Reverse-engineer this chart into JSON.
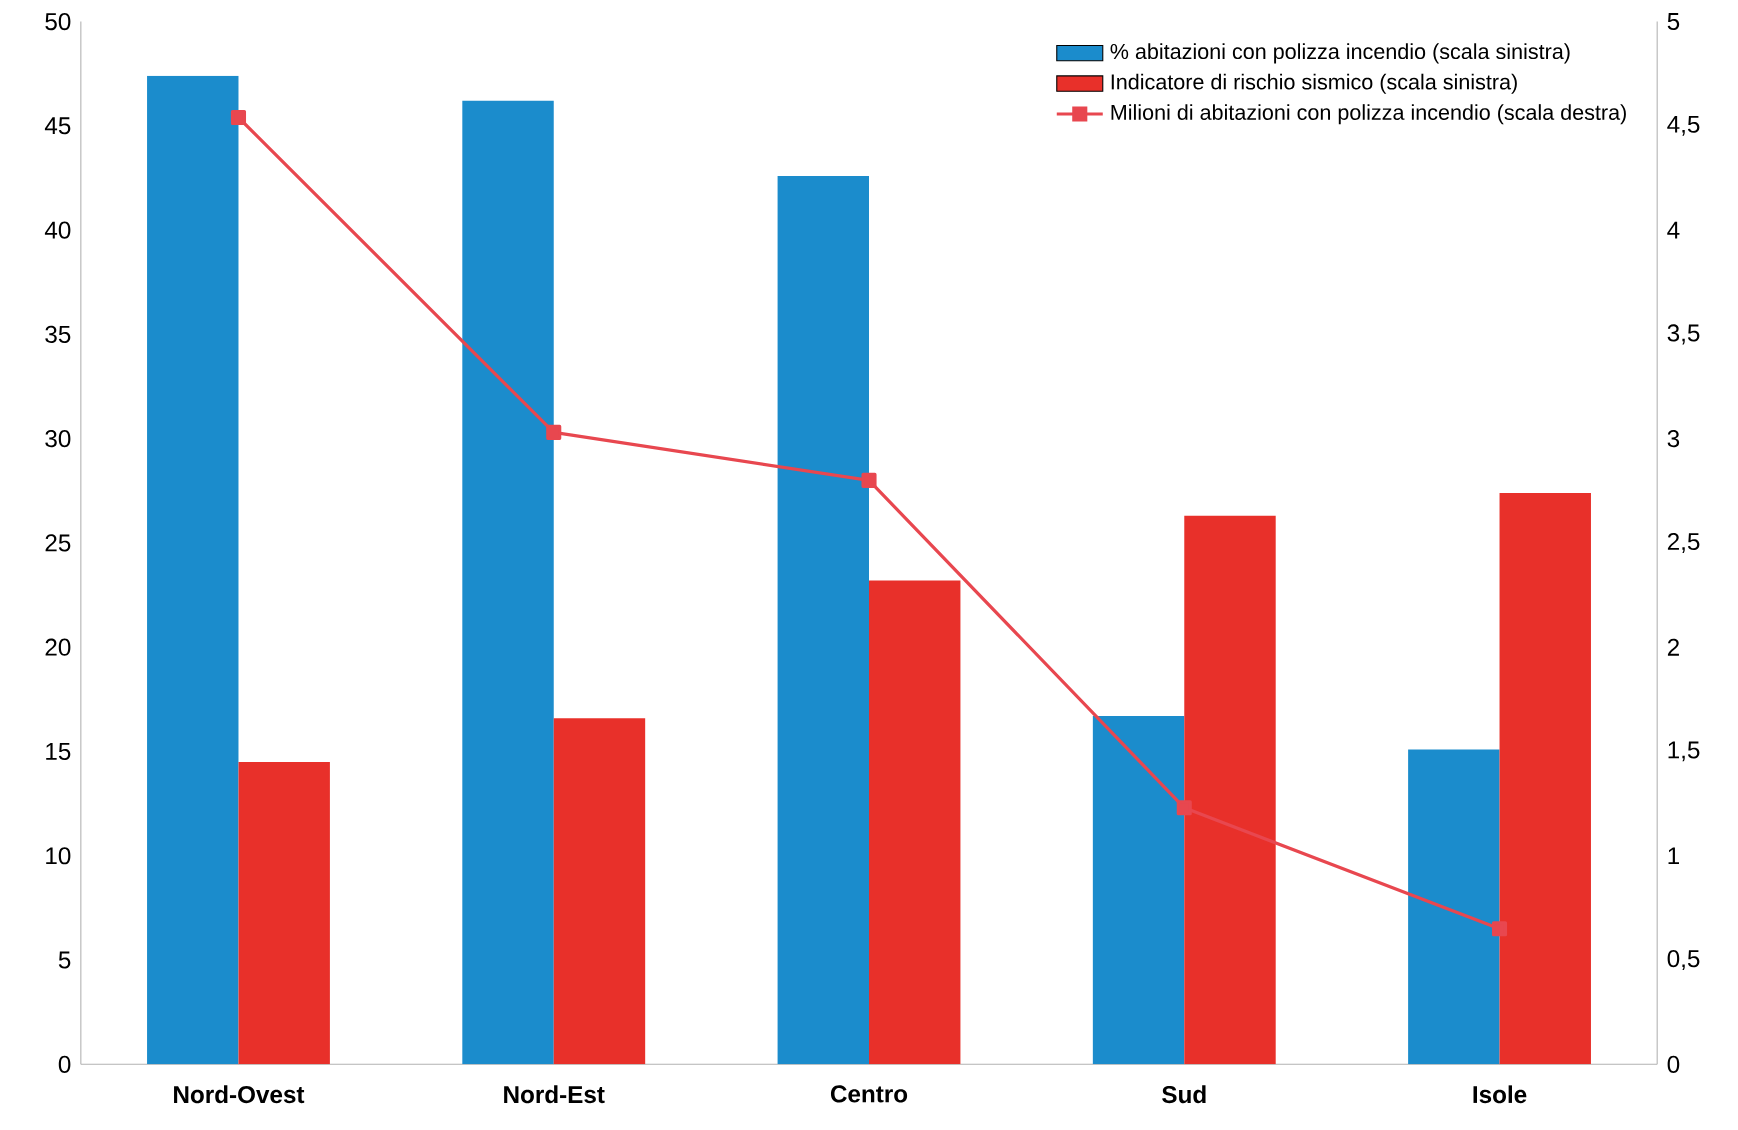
{
  "chart_data": {
    "type": "bar",
    "categories": [
      "Nord-Ovest",
      "Nord-Est",
      "Centro",
      "Sud",
      "Isole"
    ],
    "series": [
      {
        "name": "% abitazioni con polizza incendio (scala sinistra)",
        "color": "#1b8ccc",
        "values": [
          47.4,
          46.2,
          42.6,
          16.7,
          15.1
        ]
      },
      {
        "name": "Indicatore di rischio sismico (scala sinistra)",
        "color": "#e8302a",
        "values": [
          14.5,
          16.6,
          23.2,
          26.3,
          27.4
        ]
      },
      {
        "name": "Milioni di abitazioni con polizza incendio (scala destra)",
        "type": "line",
        "axis": "y2",
        "color": "#e8474f",
        "marker": "square",
        "values": [
          4.54,
          3.03,
          2.8,
          1.23,
          0.65
        ]
      }
    ],
    "ylim": [
      0,
      50
    ],
    "yticks": [
      0,
      5,
      10,
      15,
      20,
      25,
      30,
      35,
      40,
      45,
      50
    ],
    "y2lim": [
      0,
      5
    ],
    "y2ticks": [
      0,
      {
        "value": 0.5,
        "label": "0,5"
      },
      1,
      {
        "value": 1.5,
        "label": "1,5"
      },
      2,
      {
        "value": 2.5,
        "label": "2,5"
      },
      3,
      {
        "value": 3.5,
        "label": "3,5"
      },
      4,
      {
        "value": 4.5,
        "label": "4,5"
      },
      5
    ],
    "legend": "top right"
  }
}
